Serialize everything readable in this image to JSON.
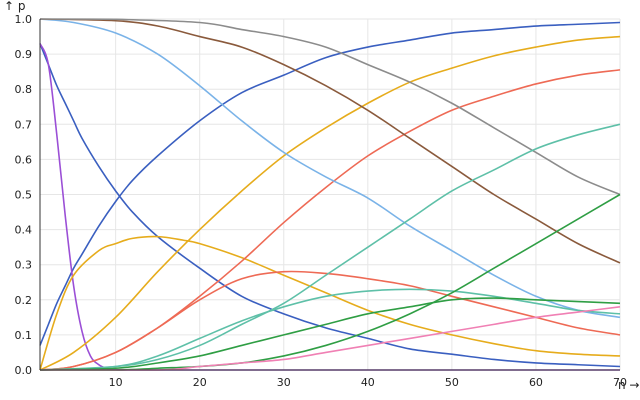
{
  "chart_data": {
    "type": "line",
    "xlabel": "n →",
    "ylabel": "↑ p",
    "xlim": [
      1,
      70
    ],
    "ylim": [
      0,
      1
    ],
    "grid": true,
    "x_ticks": [
      10,
      20,
      30,
      40,
      50,
      60,
      70
    ],
    "y_ticks": [
      "0.0",
      "0.1",
      "0.2",
      "0.3",
      "0.4",
      "0.5",
      "0.6",
      "0.7",
      "0.8",
      "0.9",
      "1.0"
    ],
    "series": [
      {
        "color": "#3a5fc0",
        "x": [
          1,
          2,
          3,
          4,
          5,
          6,
          8,
          10,
          12,
          15,
          20,
          25,
          30,
          35,
          40,
          45,
          50,
          55,
          60,
          65,
          70
        ],
        "y": [
          0.07,
          0.13,
          0.19,
          0.24,
          0.29,
          0.33,
          0.41,
          0.48,
          0.54,
          0.61,
          0.71,
          0.79,
          0.84,
          0.89,
          0.92,
          0.94,
          0.96,
          0.97,
          0.98,
          0.985,
          0.99
        ]
      },
      {
        "color": "#3a5fc0",
        "x": [
          1,
          2,
          3,
          4,
          5,
          6,
          8,
          10,
          12,
          15,
          20,
          25,
          30,
          35,
          40,
          45,
          50,
          55,
          60,
          65,
          70
        ],
        "y": [
          0.93,
          0.87,
          0.81,
          0.76,
          0.71,
          0.66,
          0.58,
          0.51,
          0.45,
          0.38,
          0.29,
          0.21,
          0.16,
          0.12,
          0.09,
          0.06,
          0.045,
          0.03,
          0.02,
          0.015,
          0.01
        ]
      },
      {
        "color": "#9b4fd6",
        "x": [
          1,
          2,
          3,
          4,
          5,
          6,
          7,
          8,
          9,
          10,
          12,
          15,
          20,
          30,
          40,
          50,
          60,
          70
        ],
        "y": [
          0.93,
          0.87,
          0.67,
          0.44,
          0.24,
          0.11,
          0.04,
          0.015,
          0.004,
          0.001,
          0,
          0,
          0,
          0,
          0,
          0,
          0,
          0
        ]
      },
      {
        "color": "#e6ac1c",
        "x": [
          1,
          3,
          5,
          8,
          10,
          12,
          15,
          18,
          20,
          25,
          30,
          35,
          40,
          45,
          50,
          55,
          60,
          65,
          70
        ],
        "y": [
          0,
          0.16,
          0.27,
          0.34,
          0.36,
          0.375,
          0.38,
          0.37,
          0.36,
          0.32,
          0.27,
          0.22,
          0.17,
          0.13,
          0.1,
          0.075,
          0.055,
          0.045,
          0.04
        ]
      },
      {
        "color": "#e6ac1c",
        "x": [
          1,
          5,
          10,
          15,
          20,
          25,
          30,
          35,
          40,
          45,
          50,
          55,
          60,
          65,
          70
        ],
        "y": [
          0,
          0.05,
          0.15,
          0.28,
          0.4,
          0.51,
          0.61,
          0.69,
          0.76,
          0.82,
          0.86,
          0.895,
          0.92,
          0.94,
          0.95
        ]
      },
      {
        "color": "#ee6a55",
        "x": [
          1,
          5,
          10,
          15,
          20,
          25,
          30,
          35,
          40,
          45,
          50,
          55,
          60,
          65,
          70
        ],
        "y": [
          0,
          0.01,
          0.05,
          0.12,
          0.21,
          0.31,
          0.42,
          0.52,
          0.61,
          0.68,
          0.74,
          0.78,
          0.815,
          0.84,
          0.855
        ]
      },
      {
        "color": "#ee6a55",
        "x": [
          1,
          5,
          10,
          15,
          20,
          25,
          30,
          35,
          40,
          45,
          50,
          55,
          60,
          65,
          70
        ],
        "y": [
          0,
          0.01,
          0.05,
          0.12,
          0.2,
          0.26,
          0.28,
          0.275,
          0.26,
          0.24,
          0.21,
          0.18,
          0.15,
          0.12,
          0.1
        ]
      },
      {
        "color": "#7ab3e8",
        "x": [
          1,
          5,
          10,
          15,
          20,
          25,
          30,
          35,
          40,
          45,
          50,
          55,
          60,
          65,
          70
        ],
        "y": [
          1,
          0.99,
          0.96,
          0.9,
          0.81,
          0.71,
          0.62,
          0.55,
          0.49,
          0.41,
          0.34,
          0.27,
          0.21,
          0.17,
          0.15
        ]
      },
      {
        "color": "#8a5a3c",
        "x": [
          1,
          10,
          15,
          20,
          25,
          30,
          35,
          40,
          45,
          50,
          55,
          60,
          65,
          70
        ],
        "y": [
          1,
          0.995,
          0.98,
          0.95,
          0.92,
          0.87,
          0.81,
          0.74,
          0.66,
          0.58,
          0.5,
          0.43,
          0.36,
          0.305
        ]
      },
      {
        "color": "#8c8c8c",
        "x": [
          1,
          10,
          20,
          25,
          30,
          35,
          40,
          45,
          50,
          55,
          60,
          65,
          70
        ],
        "y": [
          1,
          0.999,
          0.99,
          0.97,
          0.95,
          0.92,
          0.87,
          0.82,
          0.76,
          0.69,
          0.62,
          0.55,
          0.5
        ]
      },
      {
        "color": "#5ec0a8",
        "x": [
          1,
          10,
          15,
          20,
          25,
          30,
          35,
          40,
          45,
          50,
          55,
          60,
          65,
          70
        ],
        "y": [
          0,
          0.01,
          0.03,
          0.07,
          0.13,
          0.19,
          0.27,
          0.35,
          0.43,
          0.51,
          0.57,
          0.63,
          0.67,
          0.7
        ]
      },
      {
        "color": "#5ec0a8",
        "x": [
          1,
          10,
          15,
          20,
          25,
          30,
          35,
          40,
          45,
          50,
          55,
          60,
          65,
          70
        ],
        "y": [
          0,
          0.01,
          0.04,
          0.09,
          0.14,
          0.18,
          0.21,
          0.225,
          0.23,
          0.225,
          0.21,
          0.19,
          0.17,
          0.16
        ]
      },
      {
        "color": "#2f9e44",
        "x": [
          1,
          10,
          15,
          20,
          25,
          30,
          35,
          40,
          45,
          50,
          55,
          60,
          65,
          70
        ],
        "y": [
          0,
          0.005,
          0.02,
          0.04,
          0.07,
          0.1,
          0.13,
          0.16,
          0.18,
          0.2,
          0.205,
          0.2,
          0.195,
          0.19
        ]
      },
      {
        "color": "#2f9e44",
        "x": [
          1,
          10,
          15,
          20,
          25,
          30,
          35,
          40,
          45,
          50,
          55,
          60,
          65,
          70
        ],
        "y": [
          0,
          0,
          0.005,
          0.01,
          0.02,
          0.04,
          0.07,
          0.11,
          0.16,
          0.22,
          0.29,
          0.36,
          0.43,
          0.5
        ]
      },
      {
        "color": "#f080b4",
        "x": [
          1,
          15,
          20,
          25,
          30,
          35,
          40,
          45,
          50,
          55,
          60,
          65,
          70
        ],
        "y": [
          0,
          0,
          0.01,
          0.02,
          0.03,
          0.05,
          0.07,
          0.09,
          0.11,
          0.13,
          0.15,
          0.165,
          0.18
        ]
      }
    ]
  }
}
